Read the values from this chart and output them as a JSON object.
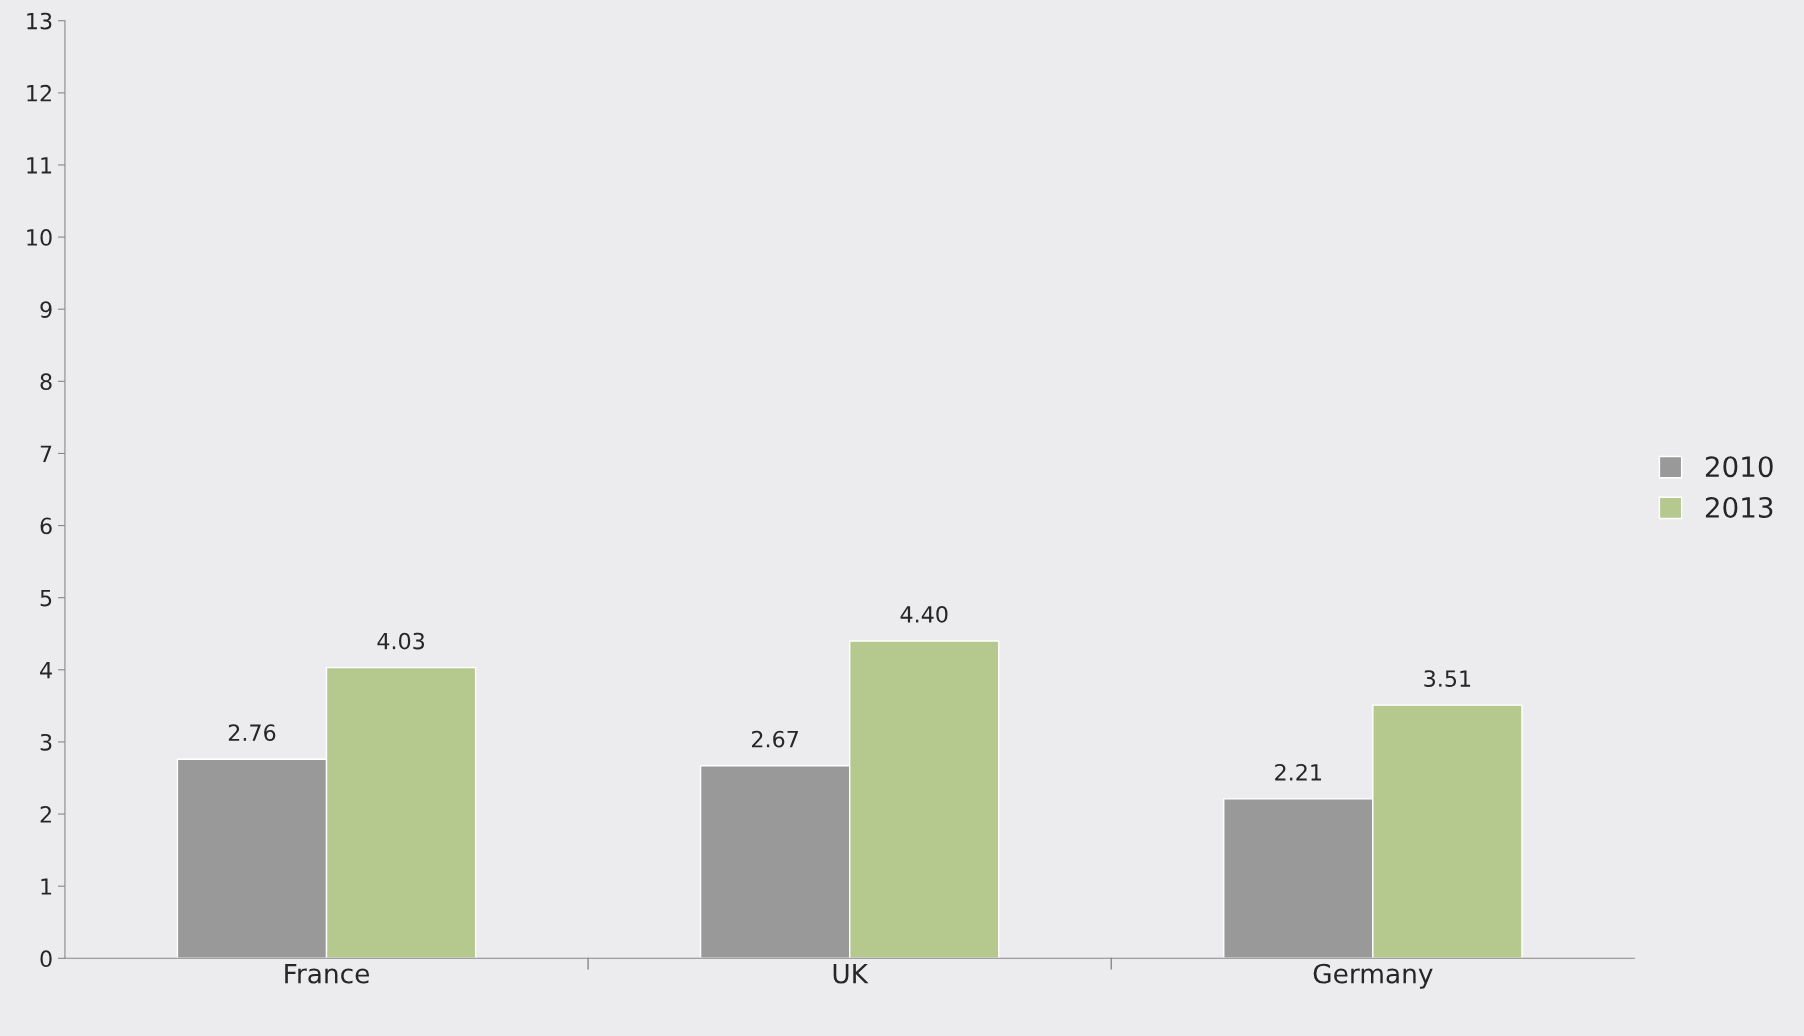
{
  "chart_data": {
    "type": "bar",
    "categories": [
      "France",
      "UK",
      "Germany"
    ],
    "series": [
      {
        "name": "2010",
        "color": "#999999",
        "values": [
          2.76,
          2.67,
          2.21
        ]
      },
      {
        "name": "2013",
        "color": "#b5c98e",
        "values": [
          4.03,
          4.4,
          3.51
        ]
      }
    ],
    "ylim": [
      0,
      13
    ],
    "yticks": [
      0,
      1,
      2,
      3,
      4,
      5,
      6,
      7,
      8,
      9,
      10,
      11,
      12,
      13
    ],
    "value_labels": [
      [
        "2.76",
        "2.67",
        "2.21"
      ],
      [
        "4.03",
        "4.40",
        "3.51"
      ]
    ],
    "grid": false,
    "legend": "right"
  }
}
